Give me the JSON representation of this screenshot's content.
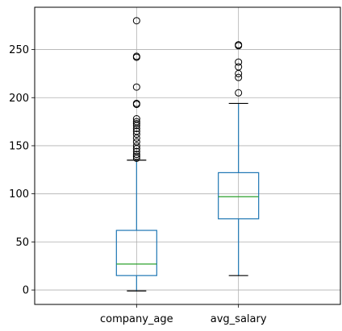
{
  "chart_data": {
    "type": "box",
    "title": "",
    "xlabel": "",
    "ylabel": "",
    "ylim": [
      -15,
      294
    ],
    "yticks": [
      0,
      50,
      100,
      150,
      200,
      250
    ],
    "grid": true,
    "colors": {
      "box": "#1f77b4",
      "median": "#2ca02c",
      "whisker": "#1f77b4",
      "cap": "#000000",
      "flier": "#000000",
      "grid": "#b0b0b0"
    },
    "series": [
      {
        "name": "company_age",
        "whisker_low": -1,
        "q1": 15,
        "median": 27,
        "q3": 62,
        "whisker_high": 135,
        "outliers": [
          137,
          139,
          141,
          144,
          147,
          150,
          154,
          158,
          162,
          165,
          168,
          171,
          173,
          175,
          178,
          193,
          194,
          211,
          242,
          243,
          280
        ]
      },
      {
        "name": "avg_salary",
        "whisker_low": 15,
        "q1": 74,
        "median": 97,
        "q3": 122,
        "whisker_high": 194,
        "outliers": [
          205,
          221,
          225,
          232,
          237,
          254,
          255
        ]
      }
    ]
  }
}
